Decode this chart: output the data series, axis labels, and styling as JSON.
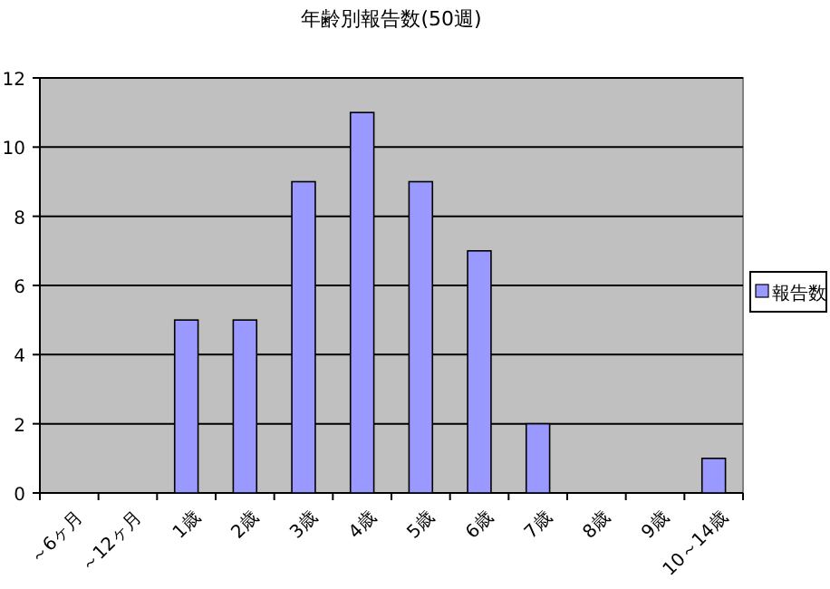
{
  "chart_data": {
    "type": "bar",
    "title": "年齢別報告数(50週)",
    "categories": [
      "～6ヶ月",
      "～12ヶ月",
      "1歳",
      "2歳",
      "3歳",
      "4歳",
      "5歳",
      "6歳",
      "7歳",
      "8歳",
      "9歳",
      "10～14歳"
    ],
    "series": [
      {
        "name": "報告数",
        "color": "#9999ff",
        "values": [
          0,
          0,
          5,
          5,
          9,
          11,
          9,
          7,
          2,
          0,
          0,
          1
        ]
      }
    ],
    "ylim": [
      0,
      12
    ],
    "yticks": [
      0,
      2,
      4,
      6,
      8,
      10,
      12
    ],
    "grid": "y",
    "legend": "right"
  }
}
